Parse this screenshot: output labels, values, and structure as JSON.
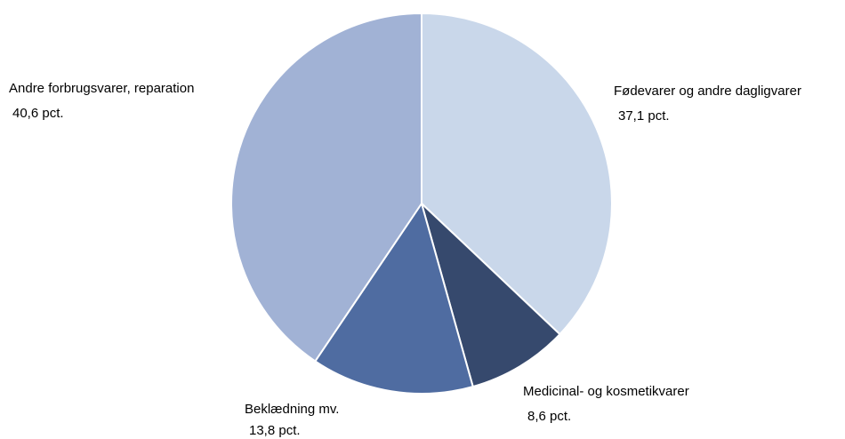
{
  "chart_data": {
    "type": "pie",
    "categories": [
      "Fødevarer og andre dagligvarer",
      "Medicinal- og kosmetikvarer",
      "Beklædning mv.",
      "Andre forbrugsvarer, reparation"
    ],
    "values": [
      37.1,
      8.6,
      13.8,
      40.6
    ],
    "value_labels": [
      "37,1 pct.",
      "8,6 pct.",
      "13,8 pct.",
      "40,6 pct."
    ],
    "colors": [
      "#c9d7ea",
      "#36496d",
      "#4f6ca1",
      "#a1b2d5"
    ]
  }
}
